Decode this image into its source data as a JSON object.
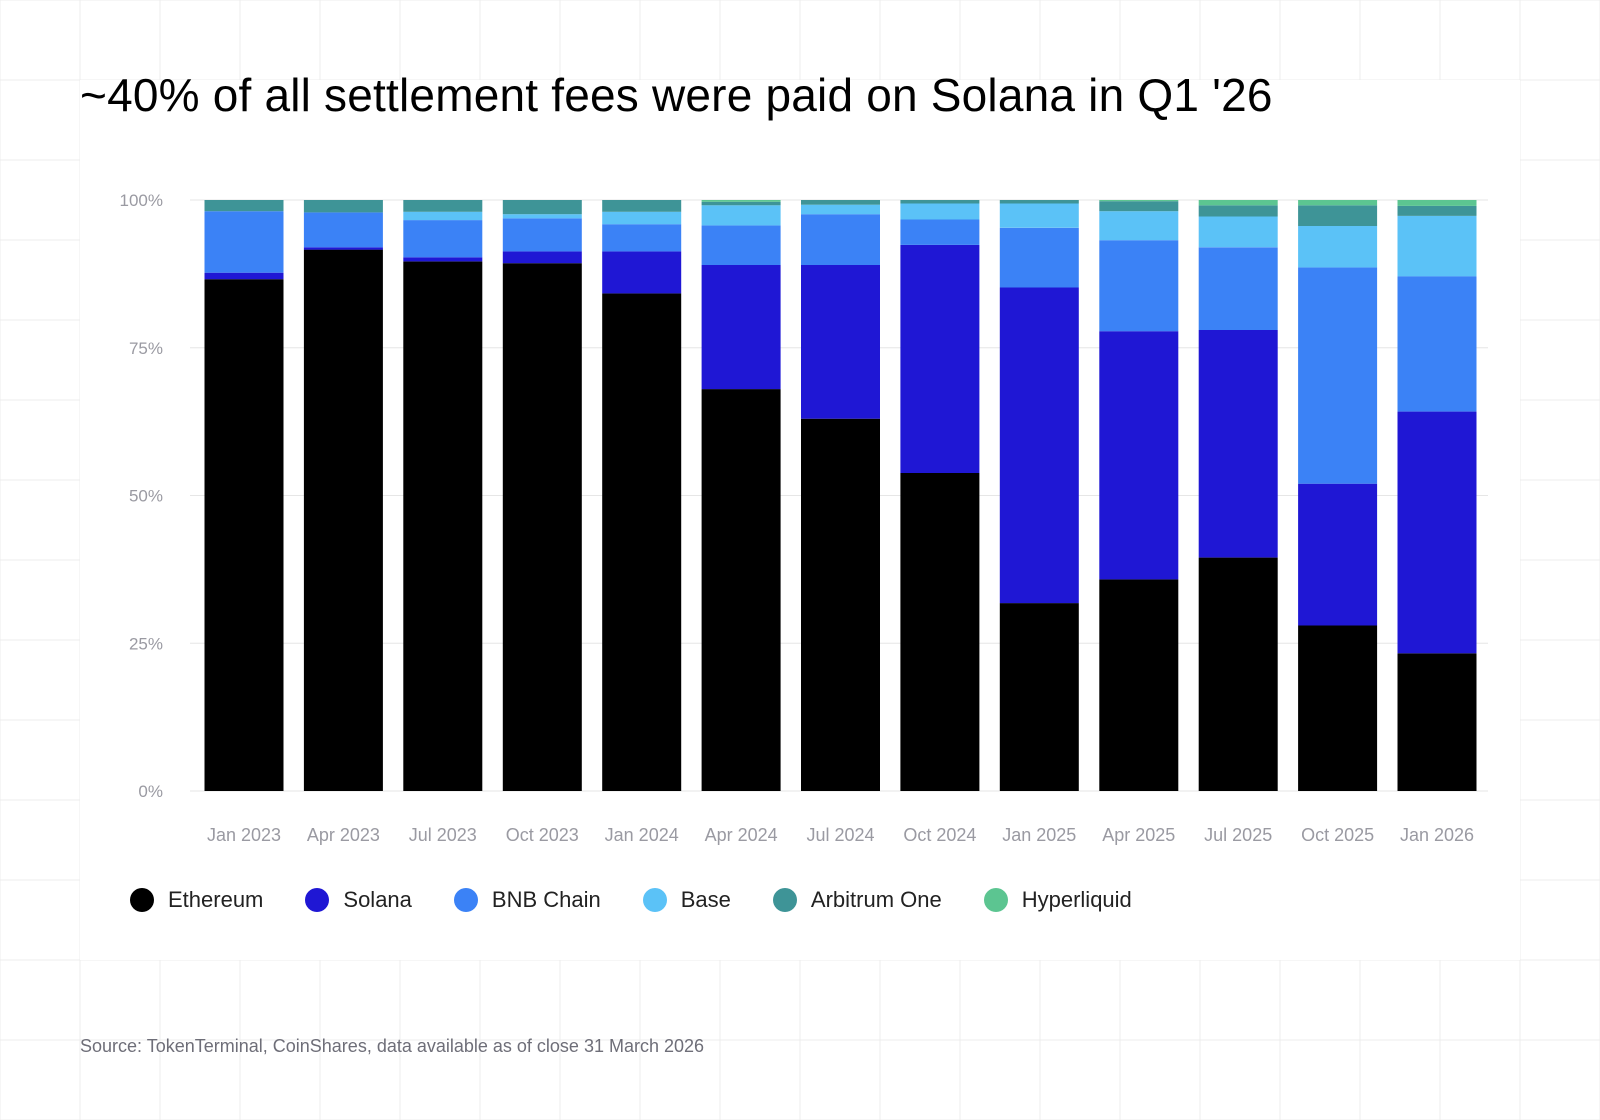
{
  "colors": {
    "background_grid": "#ececec",
    "gridline": "#e6e6e6",
    "tick_text": "#9a9aa2"
  },
  "chart_data": {
    "type": "bar",
    "stacked": true,
    "title": "~40% of all settlement fees were paid on Solana in Q1 '26",
    "xlabel": "",
    "ylabel": "",
    "ylim": [
      0,
      100
    ],
    "yticks": [
      0,
      25,
      50,
      75,
      100
    ],
    "ytick_labels": [
      "0%",
      "25%",
      "50%",
      "75%",
      "100%"
    ],
    "grid": true,
    "legend_position": "bottom",
    "categories": [
      "Jan 2023",
      "Apr 2023",
      "Jul 2023",
      "Oct 2023",
      "Jan 2024",
      "Apr 2024",
      "Jul 2024",
      "Oct 2024",
      "Jan 2025",
      "Apr 2025",
      "Jul 2025",
      "Oct 2025",
      "Jan 2026"
    ],
    "series": [
      {
        "name": "Ethereum",
        "color": "#000000",
        "values": [
          86.6,
          91.6,
          89.6,
          89.3,
          84.2,
          68.0,
          63.0,
          53.8,
          31.8,
          35.8,
          39.5,
          28.0,
          23.3
        ]
      },
      {
        "name": "Solana",
        "color": "#1f17d4",
        "values": [
          1.1,
          0.4,
          0.7,
          2.0,
          7.1,
          21.0,
          26.0,
          38.6,
          53.4,
          42.0,
          38.5,
          24.0,
          40.9
        ]
      },
      {
        "name": "BNB Chain",
        "color": "#3b82f6",
        "values": [
          10.4,
          5.9,
          6.3,
          5.6,
          4.6,
          6.7,
          8.6,
          4.3,
          10.1,
          15.4,
          14.0,
          36.6,
          22.9
        ]
      },
      {
        "name": "Base",
        "color": "#5bc2f7",
        "values": [
          0.0,
          0.0,
          1.4,
          0.7,
          2.1,
          3.4,
          1.6,
          2.7,
          4.1,
          4.9,
          5.2,
          7.0,
          10.2
        ]
      },
      {
        "name": "Arbitrum One",
        "color": "#3e9497",
        "values": [
          1.9,
          2.1,
          2.0,
          2.4,
          2.0,
          0.6,
          0.8,
          0.6,
          0.6,
          1.7,
          1.9,
          3.5,
          1.7
        ]
      },
      {
        "name": "Hyperliquid",
        "color": "#5cc591",
        "values": [
          0.0,
          0.0,
          0.0,
          0.0,
          0.0,
          0.3,
          0.0,
          0.0,
          0.0,
          0.2,
          0.9,
          0.9,
          1.0
        ]
      }
    ]
  },
  "source_note": "Source: TokenTerminal, CoinShares, data available as of close 31 March 2026"
}
